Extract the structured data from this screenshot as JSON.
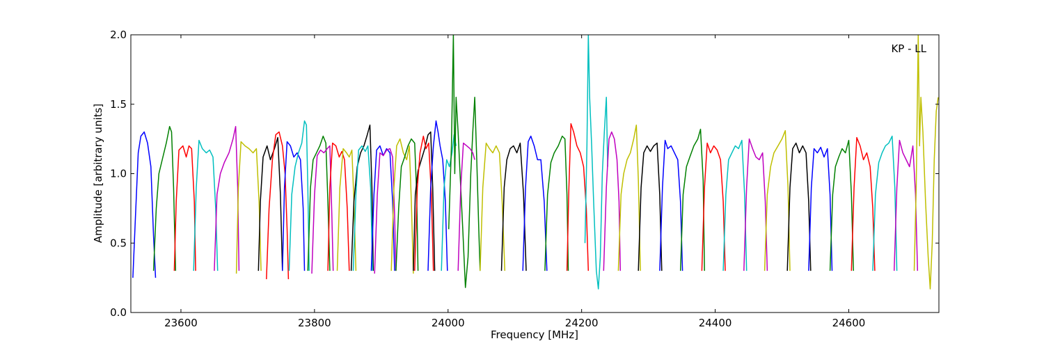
{
  "chart_data": {
    "type": "line",
    "title": "",
    "xlabel": "Frequency [MHz]",
    "ylabel": "Amplitude [arbitrary units]",
    "xlim": [
      23525,
      24735
    ],
    "ylim": [
      0.0,
      2.0
    ],
    "xticks": [
      23600,
      23800,
      24000,
      24200,
      24400,
      24600
    ],
    "yticks": [
      0.0,
      0.5,
      1.0,
      1.5,
      2.0
    ],
    "xtick_labels": [
      "23600",
      "23800",
      "24000",
      "24200",
      "24400",
      "24600"
    ],
    "ytick_labels": [
      "0.0",
      "0.5",
      "1.0",
      "1.5",
      "2.0"
    ],
    "grid": false,
    "legend": null,
    "annotation": "KP - LL",
    "series": [
      {
        "color": "#0000ff",
        "x": [
          23528,
          23532,
          23536,
          23540,
          23545,
          23550,
          23555,
          23559,
          23562
        ],
        "y": [
          0.25,
          0.7,
          1.15,
          1.27,
          1.3,
          1.22,
          1.05,
          0.55,
          0.25
        ]
      },
      {
        "color": "#008000",
        "x": [
          23559,
          23563,
          23567,
          23572,
          23578,
          23583,
          23586,
          23589,
          23592
        ],
        "y": [
          0.3,
          0.75,
          1.0,
          1.1,
          1.22,
          1.34,
          1.3,
          0.9,
          0.3
        ]
      },
      {
        "color": "#ff0000",
        "x": [
          23590,
          23593,
          23597,
          23603,
          23608,
          23612,
          23616,
          23620,
          23622
        ],
        "y": [
          0.3,
          0.8,
          1.17,
          1.2,
          1.12,
          1.2,
          1.18,
          0.8,
          0.3
        ]
      },
      {
        "color": "#00bfbf",
        "x": [
          23619,
          23623,
          23627,
          23632,
          23638,
          23643,
          23648,
          23652,
          23655
        ],
        "y": [
          0.3,
          0.9,
          1.24,
          1.18,
          1.15,
          1.17,
          1.12,
          0.75,
          0.3
        ]
      },
      {
        "color": "#bf00bf",
        "x": [
          23650,
          23654,
          23659,
          23665,
          23672,
          23678,
          23682,
          23685,
          23687
        ],
        "y": [
          0.3,
          0.85,
          1.0,
          1.08,
          1.15,
          1.25,
          1.34,
          0.9,
          0.3
        ]
      },
      {
        "color": "#bfbf00",
        "x": [
          23683,
          23686,
          23690,
          23696,
          23702,
          23708,
          23713,
          23717,
          23720
        ],
        "y": [
          0.28,
          0.9,
          1.23,
          1.2,
          1.18,
          1.15,
          1.18,
          0.8,
          0.3
        ]
      },
      {
        "color": "#000000",
        "x": [
          23716,
          23719,
          23723,
          23729,
          23734,
          23740,
          23745,
          23749,
          23752
        ],
        "y": [
          0.3,
          0.8,
          1.12,
          1.2,
          1.1,
          1.18,
          1.26,
          0.85,
          0.3
        ]
      },
      {
        "color": "#ff0000",
        "x": [
          23728,
          23732,
          23737,
          23742,
          23747,
          23752,
          23756,
          23759,
          23761
        ],
        "y": [
          0.24,
          0.75,
          1.1,
          1.28,
          1.3,
          1.2,
          1.0,
          0.6,
          0.24
        ]
      },
      {
        "color": "#0000ff",
        "x": [
          23752,
          23755,
          23759,
          23764,
          23769,
          23774,
          23779,
          23783,
          23785
        ],
        "y": [
          0.3,
          0.9,
          1.23,
          1.2,
          1.12,
          1.15,
          1.1,
          0.75,
          0.3
        ]
      },
      {
        "color": "#00bfbf",
        "x": [
          23762,
          23766,
          23771,
          23776,
          23781,
          23785,
          23788,
          23790,
          23792
        ],
        "y": [
          0.3,
          0.85,
          1.05,
          1.15,
          1.22,
          1.38,
          1.35,
          0.9,
          0.3
        ]
      },
      {
        "color": "#008000",
        "x": [
          23790,
          23794,
          23798,
          23803,
          23808,
          23813,
          23817,
          23820,
          23823
        ],
        "y": [
          0.3,
          0.9,
          1.1,
          1.15,
          1.2,
          1.27,
          1.22,
          0.8,
          0.3
        ]
      },
      {
        "color": "#bf00bf",
        "x": [
          23796,
          23800,
          23804,
          23809,
          23814,
          23819,
          23823,
          23826,
          23828
        ],
        "y": [
          0.28,
          0.85,
          1.13,
          1.17,
          1.15,
          1.18,
          1.2,
          0.7,
          0.3
        ]
      },
      {
        "color": "#ff0000",
        "x": [
          23820,
          23823,
          23827,
          23832,
          23837,
          23841,
          23845,
          23849,
          23852
        ],
        "y": [
          0.3,
          0.9,
          1.22,
          1.2,
          1.12,
          1.16,
          1.1,
          0.75,
          0.3
        ]
      },
      {
        "color": "#bfbf00",
        "x": [
          23834,
          23838,
          23843,
          23848,
          23852,
          23856,
          23859,
          23862
        ],
        "y": [
          0.3,
          0.9,
          1.18,
          1.15,
          1.12,
          1.17,
          0.8,
          0.3
        ]
      },
      {
        "color": "#000000",
        "x": [
          23855,
          23859,
          23864,
          23869,
          23874,
          23879,
          23883,
          23886,
          23888
        ],
        "y": [
          0.3,
          0.8,
          1.05,
          1.15,
          1.2,
          1.28,
          1.35,
          0.9,
          0.3
        ]
      },
      {
        "color": "#00bfbf",
        "x": [
          23858,
          23862,
          23866,
          23871,
          23876,
          23880,
          23884,
          23887
        ],
        "y": [
          0.3,
          0.85,
          1.17,
          1.2,
          1.16,
          1.2,
          0.9,
          0.3
        ]
      },
      {
        "color": "#0000ff",
        "x": [
          23885,
          23889,
          23893,
          23898,
          23903,
          23908,
          23913,
          23917,
          23920
        ],
        "y": [
          0.3,
          0.85,
          1.17,
          1.2,
          1.13,
          1.18,
          1.15,
          0.8,
          0.3
        ]
      },
      {
        "color": "#bf00bf",
        "x": [
          23890,
          23894,
          23898,
          23903,
          23908,
          23913,
          23917,
          23920,
          23922
        ],
        "y": [
          0.28,
          0.85,
          1.15,
          1.13,
          1.17,
          1.18,
          1.12,
          0.7,
          0.3
        ]
      },
      {
        "color": "#bfbf00",
        "x": [
          23915,
          23919,
          23923,
          23928,
          23933,
          23938,
          23942,
          23945,
          23948
        ],
        "y": [
          0.3,
          0.9,
          1.2,
          1.25,
          1.15,
          1.1,
          1.2,
          0.8,
          0.28
        ]
      },
      {
        "color": "#008000",
        "x": [
          23922,
          23926,
          23930,
          23935,
          23940,
          23945,
          23950,
          23953,
          23955
        ],
        "y": [
          0.3,
          0.75,
          1.05,
          1.12,
          1.2,
          1.25,
          1.22,
          0.85,
          0.3
        ]
      },
      {
        "color": "#000000",
        "x": [
          23948,
          23951,
          23955,
          23960,
          23965,
          23970,
          23974,
          23977,
          23980
        ],
        "y": [
          0.3,
          0.85,
          1.02,
          1.1,
          1.18,
          1.28,
          1.3,
          0.9,
          0.3
        ]
      },
      {
        "color": "#ff0000",
        "x": [
          23950,
          23954,
          23958,
          23963,
          23967,
          23971,
          23975,
          23978
        ],
        "y": [
          0.3,
          0.9,
          1.15,
          1.27,
          1.18,
          1.22,
          0.85,
          0.3
        ]
      },
      {
        "color": "#0000ff",
        "x": [
          23970,
          23974,
          23978,
          23982,
          23985,
          23988,
          23992,
          23996,
          23999
        ],
        "y": [
          0.3,
          0.9,
          1.2,
          1.38,
          1.3,
          1.2,
          1.1,
          0.8,
          0.3
        ]
      },
      {
        "color": "#00bfbf",
        "x": [
          23990,
          23994,
          23998,
          24002,
          24006,
          24009,
          24012
        ],
        "y": [
          0.3,
          0.9,
          1.1,
          1.05,
          1.15,
          1.28,
          1.2
        ]
      },
      {
        "color": "#008000",
        "x": [
          24001,
          24005,
          24008,
          24010,
          24012,
          24015,
          24018,
          24022,
          24026,
          24030,
          24034,
          24037,
          24040,
          24043,
          24046,
          24048
        ],
        "y": [
          0.6,
          1.2,
          2.0,
          1.0,
          1.55,
          1.3,
          1.0,
          0.6,
          0.18,
          0.4,
          1.0,
          1.3,
          1.55,
          1.1,
          0.6,
          0.3
        ]
      },
      {
        "color": "#bf00bf",
        "x": [
          24015,
          24019,
          24023,
          24028,
          24033,
          24037,
          24040
        ],
        "y": [
          0.3,
          0.9,
          1.22,
          1.2,
          1.18,
          1.15,
          1.1
        ]
      },
      {
        "color": "#bfbf00",
        "x": [
          24048,
          24052,
          24057,
          24062,
          24067,
          24072,
          24077,
          24081,
          24085
        ],
        "y": [
          0.3,
          0.9,
          1.22,
          1.18,
          1.15,
          1.2,
          1.15,
          0.8,
          0.3
        ]
      },
      {
        "color": "#000000",
        "x": [
          24080,
          24084,
          24088,
          24093,
          24098,
          24103,
          24108,
          24113,
          24117
        ],
        "y": [
          0.3,
          0.9,
          1.1,
          1.18,
          1.2,
          1.15,
          1.22,
          0.85,
          0.3
        ]
      },
      {
        "color": "#0000ff",
        "x": [
          24112,
          24116,
          24120,
          24124,
          24129,
          24134,
          24139,
          24144,
          24148
        ],
        "y": [
          0.3,
          0.9,
          1.23,
          1.27,
          1.2,
          1.1,
          1.1,
          0.8,
          0.3
        ]
      },
      {
        "color": "#008000",
        "x": [
          24145,
          24149,
          24154,
          24159,
          24165,
          24171,
          24175,
          24178,
          24180
        ],
        "y": [
          0.3,
          0.85,
          1.08,
          1.15,
          1.2,
          1.27,
          1.25,
          0.85,
          0.3
        ]
      },
      {
        "color": "#ff0000",
        "x": [
          24178,
          24181,
          24184,
          24188,
          24193,
          24198,
          24203,
          24207,
          24210
        ],
        "y": [
          0.3,
          0.9,
          1.36,
          1.3,
          1.2,
          1.15,
          1.05,
          0.75,
          0.3
        ]
      },
      {
        "color": "#00bfbf",
        "x": [
          24205,
          24208,
          24210,
          24212,
          24215,
          24218,
          24222,
          24225,
          24228,
          24231,
          24234,
          24237,
          24239
        ],
        "y": [
          0.5,
          1.2,
          2.0,
          1.55,
          1.2,
          0.8,
          0.3,
          0.17,
          0.4,
          1.0,
          1.3,
          1.55,
          1.05
        ]
      },
      {
        "color": "#bf00bf",
        "x": [
          24233,
          24237,
          24241,
          24245,
          24249,
          24253,
          24256,
          24258
        ],
        "y": [
          0.3,
          0.9,
          1.25,
          1.3,
          1.25,
          1.1,
          0.8,
          0.3
        ]
      },
      {
        "color": "#bfbf00",
        "x": [
          24255,
          24259,
          24263,
          24268,
          24273,
          24278,
          24282,
          24285,
          24288
        ],
        "y": [
          0.3,
          0.85,
          1.0,
          1.1,
          1.15,
          1.25,
          1.35,
          0.95,
          0.3
        ]
      },
      {
        "color": "#000000",
        "x": [
          24285,
          24289,
          24293,
          24298,
          24303,
          24308,
          24313,
          24317,
          24320
        ],
        "y": [
          0.3,
          0.9,
          1.15,
          1.2,
          1.16,
          1.2,
          1.22,
          0.85,
          0.3
        ]
      },
      {
        "color": "#0000ff",
        "x": [
          24317,
          24321,
          24325,
          24329,
          24334,
          24339,
          24344,
          24348,
          24351
        ],
        "y": [
          0.3,
          0.9,
          1.24,
          1.18,
          1.2,
          1.15,
          1.1,
          0.8,
          0.3
        ]
      },
      {
        "color": "#008000",
        "x": [
          24348,
          24352,
          24357,
          24362,
          24368,
          24374,
          24378,
          24382,
          24384
        ],
        "y": [
          0.3,
          0.85,
          1.05,
          1.12,
          1.2,
          1.25,
          1.32,
          0.95,
          0.3
        ]
      },
      {
        "color": "#ff0000",
        "x": [
          24380,
          24384,
          24388,
          24393,
          24398,
          24403,
          24408,
          24412,
          24415
        ],
        "y": [
          0.3,
          0.9,
          1.22,
          1.15,
          1.2,
          1.17,
          1.1,
          0.8,
          0.3
        ]
      },
      {
        "color": "#00bfbf",
        "x": [
          24412,
          24416,
          24420,
          24425,
          24430,
          24435,
          24440,
          24444,
          24447
        ],
        "y": [
          0.3,
          0.85,
          1.1,
          1.15,
          1.2,
          1.18,
          1.24,
          0.85,
          0.3
        ]
      },
      {
        "color": "#bf00bf",
        "x": [
          24443,
          24447,
          24451,
          24456,
          24461,
          24466,
          24471,
          24475,
          24478
        ],
        "y": [
          0.3,
          0.9,
          1.25,
          1.18,
          1.12,
          1.1,
          1.15,
          0.8,
          0.3
        ]
      },
      {
        "color": "#bfbf00",
        "x": [
          24474,
          24478,
          24483,
          24488,
          24494,
          24500,
          24505,
          24509,
          24512
        ],
        "y": [
          0.3,
          0.85,
          1.05,
          1.15,
          1.2,
          1.25,
          1.31,
          0.9,
          0.3
        ]
      },
      {
        "color": "#000000",
        "x": [
          24508,
          24512,
          24516,
          24521,
          24526,
          24531,
          24536,
          24540,
          24543
        ],
        "y": [
          0.3,
          0.9,
          1.18,
          1.22,
          1.15,
          1.2,
          1.15,
          0.8,
          0.3
        ]
      },
      {
        "color": "#0000ff",
        "x": [
          24540,
          24544,
          24548,
          24553,
          24558,
          24563,
          24568,
          24572,
          24575
        ],
        "y": [
          0.3,
          0.9,
          1.18,
          1.15,
          1.19,
          1.12,
          1.18,
          0.85,
          0.3
        ]
      },
      {
        "color": "#008000",
        "x": [
          24572,
          24576,
          24580,
          24585,
          24590,
          24595,
          24600,
          24604,
          24607
        ],
        "y": [
          0.3,
          0.85,
          1.05,
          1.12,
          1.18,
          1.15,
          1.24,
          0.85,
          0.3
        ]
      },
      {
        "color": "#ff0000",
        "x": [
          24604,
          24608,
          24612,
          24617,
          24622,
          24627,
          24632,
          24636,
          24639
        ],
        "y": [
          0.3,
          0.9,
          1.26,
          1.2,
          1.1,
          1.15,
          1.05,
          0.75,
          0.3
        ]
      },
      {
        "color": "#00bfbf",
        "x": [
          24636,
          24640,
          24645,
          24650,
          24655,
          24660,
          24665,
          24669,
          24672
        ],
        "y": [
          0.3,
          0.85,
          1.08,
          1.15,
          1.2,
          1.22,
          1.27,
          0.9,
          0.3
        ]
      },
      {
        "color": "#bf00bf",
        "x": [
          24668,
          24672,
          24676,
          24681,
          24686,
          24691,
          24696,
          24700,
          24703
        ],
        "y": [
          0.3,
          0.9,
          1.24,
          1.15,
          1.1,
          1.05,
          1.2,
          0.85,
          0.3
        ]
      },
      {
        "color": "#bfbf00",
        "x": [
          24698,
          24701,
          24704,
          24706,
          24708,
          24711,
          24715,
          24719,
          24722,
          24725,
          24728,
          24731,
          24734
        ],
        "y": [
          0.3,
          0.9,
          2.0,
          1.2,
          1.55,
          1.3,
          0.8,
          0.4,
          0.17,
          0.5,
          1.1,
          1.45,
          1.55
        ]
      }
    ]
  }
}
